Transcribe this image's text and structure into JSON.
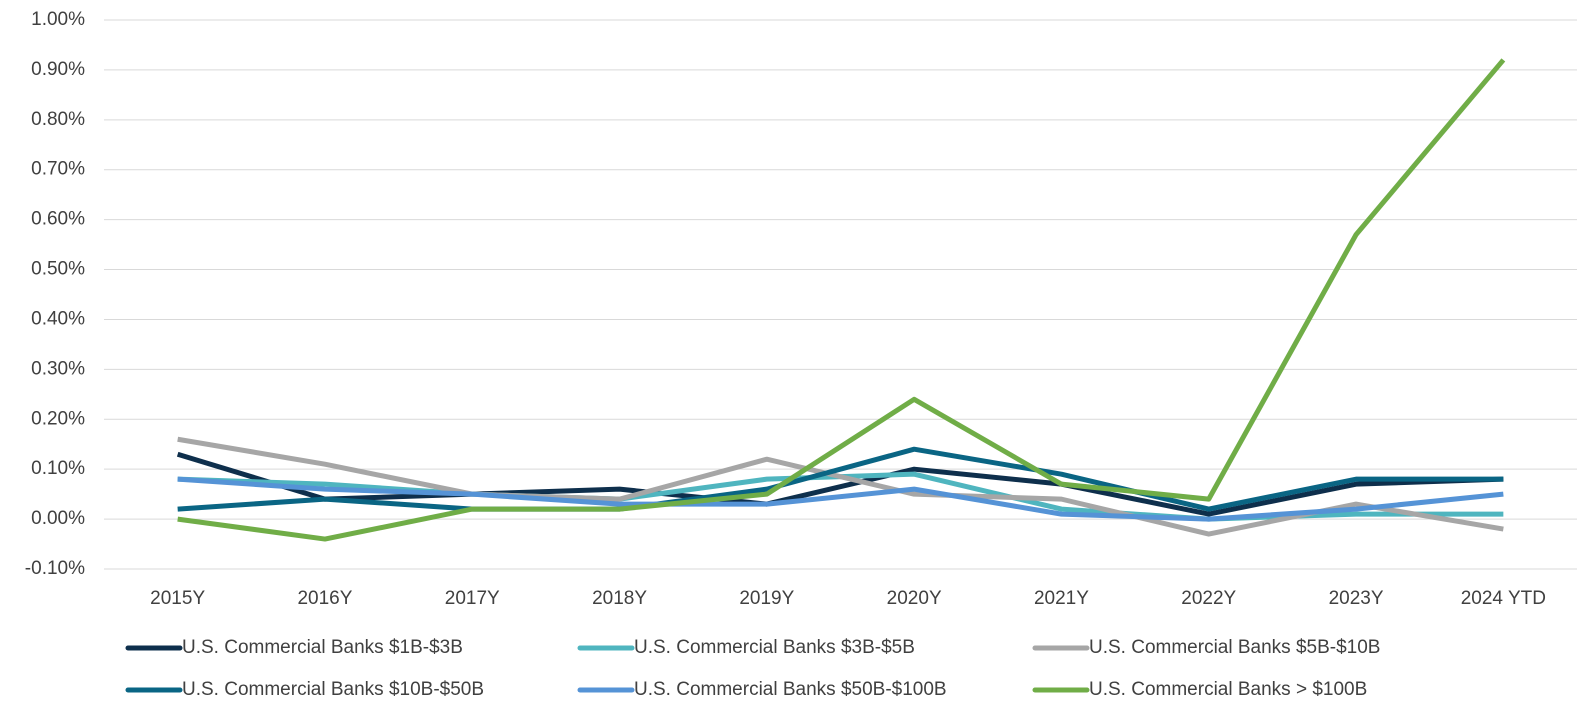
{
  "chart_data": {
    "type": "line",
    "categories": [
      "2015Y",
      "2016Y",
      "2017Y",
      "2018Y",
      "2019Y",
      "2020Y",
      "2021Y",
      "2022Y",
      "2023Y",
      "2024 YTD"
    ],
    "series": [
      {
        "name": "U.S. Commercial Banks $1B-$3B",
        "color": "#0e2f4c",
        "values": [
          0.13,
          0.04,
          0.05,
          0.06,
          0.03,
          0.1,
          0.07,
          0.01,
          0.07,
          0.08
        ]
      },
      {
        "name": "U.S. Commercial Banks $3B-$5B",
        "color": "#4fb5bf",
        "values": [
          0.08,
          0.07,
          0.05,
          0.04,
          0.08,
          0.09,
          0.02,
          0.0,
          0.01,
          0.01
        ]
      },
      {
        "name": "U.S. Commercial Banks $5B-$10B",
        "color": "#a6a6a6",
        "values": [
          0.16,
          0.11,
          0.05,
          0.04,
          0.12,
          0.05,
          0.04,
          -0.03,
          0.03,
          -0.02
        ]
      },
      {
        "name": "U.S. Commercial Banks $10B-$50B",
        "color": "#0a6584",
        "values": [
          0.02,
          0.04,
          0.02,
          0.02,
          0.06,
          0.14,
          0.09,
          0.02,
          0.08,
          0.08
        ]
      },
      {
        "name": "U.S. Commercial Banks $50B-$100B",
        "color": "#5593d6",
        "values": [
          0.08,
          0.06,
          0.05,
          0.03,
          0.03,
          0.06,
          0.01,
          0.0,
          0.02,
          0.05
        ]
      },
      {
        "name": "U.S. Commercial Banks > $100B",
        "color": "#70ad47",
        "values": [
          0.0,
          -0.04,
          0.02,
          0.02,
          0.05,
          0.24,
          0.07,
          0.04,
          0.57,
          0.92
        ]
      }
    ],
    "ylim": [
      -0.1,
      1.0
    ],
    "yticks": [
      {
        "value": -0.1,
        "label": "-0.10%"
      },
      {
        "value": 0,
        "label": "0.00%"
      },
      {
        "value": 0.1,
        "label": "0.10%"
      },
      {
        "value": 0.2,
        "label": "0.20%"
      },
      {
        "value": 0.3,
        "label": "0.30%"
      },
      {
        "value": 0.4,
        "label": "0.40%"
      },
      {
        "value": 0.5,
        "label": "0.50%"
      },
      {
        "value": 0.6,
        "label": "0.60%"
      },
      {
        "value": 0.7,
        "label": "0.70%"
      },
      {
        "value": 0.8,
        "label": "0.80%"
      },
      {
        "value": 0.9,
        "label": "0.90%"
      },
      {
        "value": 1.0,
        "label": "1.00%"
      }
    ],
    "grid": true
  }
}
